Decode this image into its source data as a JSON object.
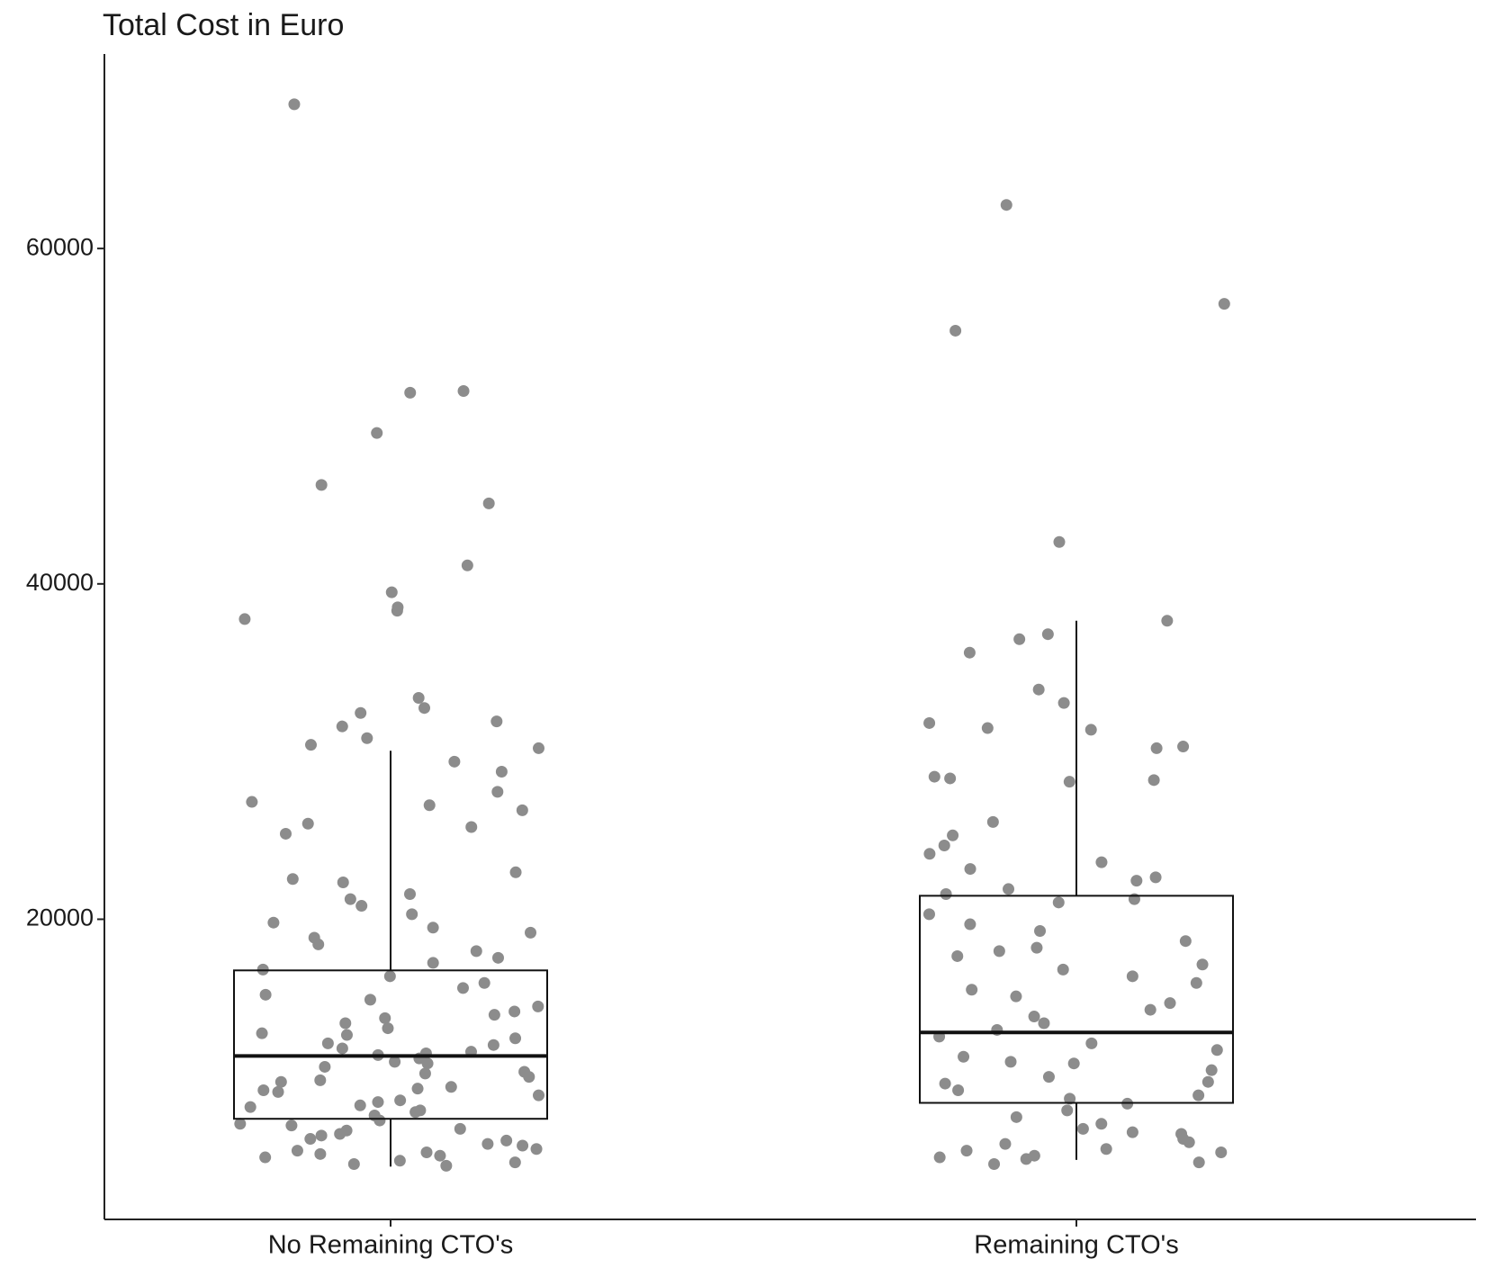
{
  "chart_data": {
    "type": "box",
    "title": "Total Cost in Euro",
    "categories": [
      "No Remaining CTO's",
      "Remaining CTO's"
    ],
    "boxes": [
      {
        "min": 5250,
        "q1": 8100,
        "median": 11850,
        "q3": 16950,
        "max": 30050
      },
      {
        "min": 5650,
        "q1": 9050,
        "median": 13250,
        "q3": 21400,
        "max": 37800
      }
    ],
    "points": [
      [
        68600,
        51500,
        51400,
        49000,
        45900,
        44800,
        41100,
        39500,
        38600,
        38400,
        37900,
        33200,
        32600,
        32300,
        31800,
        31500,
        30800,
        30400,
        30200,
        29400,
        28800,
        27600,
        27000,
        26800,
        26500,
        25700,
        25500,
        25100,
        22800,
        22400,
        22200,
        21500,
        21200,
        20800,
        20300,
        19800,
        19500,
        19200,
        18900,
        18500,
        18100,
        17700,
        17400,
        17000,
        16600,
        16200,
        15900,
        15500,
        15200,
        14800,
        14500,
        14100,
        13800,
        13500,
        13200,
        12900,
        12600,
        12300,
        12000,
        11700,
        11500,
        11200,
        10900,
        10600,
        10300,
        10000,
        9800,
        9500,
        9200,
        8900,
        8600,
        8300,
        8000,
        7800,
        7500,
        7200,
        6900,
        6600,
        6300,
        6000,
        5800,
        5600,
        5400,
        5300,
        12100,
        11400,
        10800,
        9700,
        9100,
        8500,
        7700,
        7100,
        6500,
        6100,
        5900,
        14300,
        13100,
        12500,
        11900,
        10400,
        9900,
        8800,
        7400,
        6800,
        6200,
        5500
      ],
      [
        62600,
        56700,
        55100,
        42500,
        37800,
        37000,
        36700,
        35900,
        33700,
        32900,
        31700,
        31400,
        31300,
        30300,
        30200,
        28500,
        28400,
        28300,
        28200,
        25800,
        25000,
        24400,
        23900,
        23400,
        23000,
        22500,
        22300,
        21800,
        21500,
        21200,
        21000,
        20300,
        19700,
        19300,
        18700,
        18300,
        18100,
        17800,
        17300,
        17000,
        16600,
        16200,
        15800,
        15400,
        15000,
        14600,
        14200,
        13800,
        13400,
        13000,
        12600,
        12200,
        11800,
        11400,
        11000,
        10600,
        10200,
        9800,
        9500,
        9000,
        8600,
        8200,
        7800,
        7500,
        7200,
        6900,
        6600,
        6300,
        6100,
        5900,
        5700,
        5500,
        5400,
        11500,
        10300,
        9300,
        7300,
        6700,
        6200,
        5800
      ]
    ],
    "point_color": "#8c8c8c",
    "ylim": [
      2100,
      71600
    ],
    "yticks": [
      20000,
      40000,
      60000
    ]
  }
}
